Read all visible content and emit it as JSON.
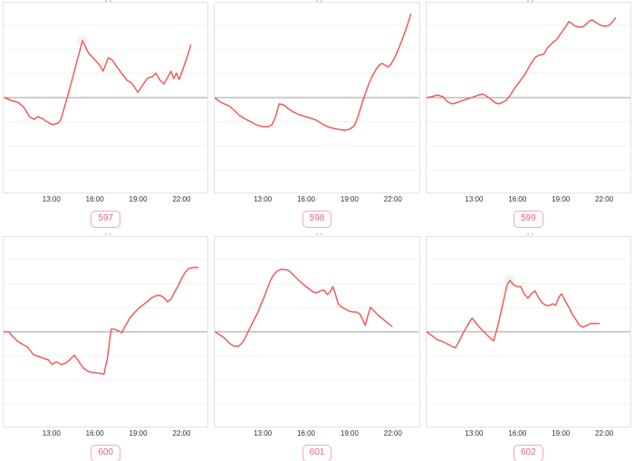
{
  "colors": {
    "line_red": "#f15b5b",
    "baseline_gray": "#9e9e9e",
    "gridline_gray": "#f2f2f2",
    "box_border_gray": "#e2e2e2",
    "badge_border_pink": "#f4a7bd",
    "badge_text_pink": "#e8638c",
    "tick_text": "#303030",
    "peak_halo_gray": "#efefef"
  },
  "chart_data": [
    {
      "type": "line",
      "id": "597",
      "xlabel": "",
      "ylabel": "",
      "x_ticks": [
        {
          "hour": 13,
          "label": "13:00"
        },
        {
          "hour": 16,
          "label": "16:00"
        },
        {
          "hour": 19,
          "label": "19:00"
        },
        {
          "hour": 22,
          "label": "22:00"
        }
      ],
      "xlim": [
        9.38,
        23.62
      ],
      "ylim": [
        -3.93,
        3.93
      ],
      "gridline_units": [
        -3,
        -2,
        -1,
        1,
        2,
        3
      ],
      "baseline_unit": 0,
      "grid": true,
      "peak_marker": true,
      "points": [
        [
          9.44,
          0
        ],
        [
          10.06,
          -0.15
        ],
        [
          10.38,
          -0.19
        ],
        [
          10.81,
          -0.41
        ],
        [
          11.19,
          -0.79
        ],
        [
          11.5,
          -0.9
        ],
        [
          11.75,
          -0.79
        ],
        [
          12.06,
          -0.86
        ],
        [
          12.56,
          -1.05
        ],
        [
          12.81,
          -1.12
        ],
        [
          13.19,
          -1.05
        ],
        [
          13.38,
          -0.9
        ],
        [
          13.94,
          0.26
        ],
        [
          14.88,
          2.36
        ],
        [
          15.31,
          1.84
        ],
        [
          15.75,
          1.57
        ],
        [
          16.13,
          1.31
        ],
        [
          16.31,
          1.09
        ],
        [
          16.69,
          1.65
        ],
        [
          17,
          1.54
        ],
        [
          17.19,
          1.35
        ],
        [
          17.56,
          1.05
        ],
        [
          18,
          0.71
        ],
        [
          18.31,
          0.6
        ],
        [
          18.75,
          0.22
        ],
        [
          19.13,
          0.56
        ],
        [
          19.44,
          0.82
        ],
        [
          19.75,
          0.86
        ],
        [
          20,
          1.01
        ],
        [
          20.31,
          0.71
        ],
        [
          20.56,
          0.56
        ],
        [
          20.88,
          0.9
        ],
        [
          21.06,
          1.09
        ],
        [
          21.25,
          0.79
        ],
        [
          21.44,
          1.01
        ],
        [
          21.63,
          0.75
        ],
        [
          21.88,
          1.16
        ],
        [
          22.19,
          1.69
        ],
        [
          22.44,
          2.17
        ]
      ]
    },
    {
      "type": "line",
      "id": "598",
      "xlabel": "",
      "ylabel": "",
      "x_ticks": [
        {
          "hour": 13,
          "label": "13:00"
        },
        {
          "hour": 16,
          "label": "16:00"
        },
        {
          "hour": 19,
          "label": "19:00"
        },
        {
          "hour": 22,
          "label": "22:00"
        }
      ],
      "xlim": [
        9.38,
        23.62
      ],
      "ylim": [
        -3.93,
        3.93
      ],
      "gridline_units": [
        -3,
        -2,
        -1,
        1,
        2,
        3
      ],
      "baseline_unit": 0,
      "grid": true,
      "peak_marker": false,
      "points": [
        [
          9.38,
          0
        ],
        [
          9.69,
          -0.15
        ],
        [
          10.06,
          -0.26
        ],
        [
          10.38,
          -0.34
        ],
        [
          10.75,
          -0.52
        ],
        [
          11.06,
          -0.71
        ],
        [
          11.44,
          -0.86
        ],
        [
          11.81,
          -0.97
        ],
        [
          12.25,
          -1.12
        ],
        [
          12.69,
          -1.2
        ],
        [
          13.13,
          -1.2
        ],
        [
          13.38,
          -1.12
        ],
        [
          13.63,
          -0.79
        ],
        [
          13.88,
          -0.26
        ],
        [
          14.19,
          -0.3
        ],
        [
          14.5,
          -0.45
        ],
        [
          14.88,
          -0.6
        ],
        [
          15.31,
          -0.71
        ],
        [
          15.75,
          -0.79
        ],
        [
          16.13,
          -0.86
        ],
        [
          16.5,
          -0.94
        ],
        [
          16.88,
          -1.09
        ],
        [
          17.25,
          -1.2
        ],
        [
          17.63,
          -1.27
        ],
        [
          18,
          -1.31
        ],
        [
          18.44,
          -1.35
        ],
        [
          18.81,
          -1.31
        ],
        [
          19.13,
          -1.16
        ],
        [
          19.38,
          -0.79
        ],
        [
          19.63,
          -0.3
        ],
        [
          19.88,
          0.15
        ],
        [
          20.13,
          0.56
        ],
        [
          20.38,
          0.9
        ],
        [
          20.63,
          1.16
        ],
        [
          20.88,
          1.35
        ],
        [
          21.06,
          1.42
        ],
        [
          21.25,
          1.35
        ],
        [
          21.5,
          1.27
        ],
        [
          21.69,
          1.39
        ],
        [
          21.94,
          1.65
        ],
        [
          22.19,
          1.99
        ],
        [
          22.44,
          2.36
        ],
        [
          22.69,
          2.77
        ],
        [
          22.88,
          3.11
        ],
        [
          23.06,
          3.45
        ]
      ]
    },
    {
      "type": "line",
      "id": "599",
      "xlabel": "",
      "ylabel": "",
      "x_ticks": [
        {
          "hour": 13,
          "label": "13:00"
        },
        {
          "hour": 16,
          "label": "16:00"
        },
        {
          "hour": 19,
          "label": "19:00"
        },
        {
          "hour": 22,
          "label": "22:00"
        }
      ],
      "xlim": [
        9.38,
        23.62
      ],
      "ylim": [
        -3.93,
        3.93
      ],
      "gridline_units": [
        -3,
        -2,
        -1,
        1,
        2,
        3
      ],
      "baseline_unit": 0,
      "grid": true,
      "peak_marker": false,
      "points": [
        [
          9.38,
          0
        ],
        [
          9.75,
          0.04
        ],
        [
          10.13,
          0.11
        ],
        [
          10.5,
          0.04
        ],
        [
          10.88,
          -0.19
        ],
        [
          11.19,
          -0.26
        ],
        [
          11.56,
          -0.19
        ],
        [
          11.94,
          -0.11
        ],
        [
          12.31,
          -0.04
        ],
        [
          12.69,
          0.04
        ],
        [
          13,
          0.11
        ],
        [
          13.31,
          0.15
        ],
        [
          13.63,
          0.04
        ],
        [
          13.94,
          -0.11
        ],
        [
          14.19,
          -0.22
        ],
        [
          14.44,
          -0.26
        ],
        [
          14.69,
          -0.19
        ],
        [
          14.94,
          -0.11
        ],
        [
          15.19,
          0.07
        ],
        [
          15.5,
          0.37
        ],
        [
          15.88,
          0.67
        ],
        [
          16.25,
          0.97
        ],
        [
          16.63,
          1.39
        ],
        [
          17,
          1.69
        ],
        [
          17.25,
          1.76
        ],
        [
          17.56,
          1.8
        ],
        [
          17.81,
          2.06
        ],
        [
          18.13,
          2.25
        ],
        [
          18.44,
          2.4
        ],
        [
          18.75,
          2.66
        ],
        [
          19.06,
          2.92
        ],
        [
          19.31,
          3.15
        ],
        [
          19.5,
          3.07
        ],
        [
          19.75,
          2.96
        ],
        [
          20,
          2.92
        ],
        [
          20.25,
          2.92
        ],
        [
          20.5,
          3.03
        ],
        [
          20.75,
          3.18
        ],
        [
          20.94,
          3.22
        ],
        [
          21.19,
          3.11
        ],
        [
          21.44,
          3.03
        ],
        [
          21.69,
          2.96
        ],
        [
          21.94,
          2.96
        ],
        [
          22.13,
          3
        ],
        [
          22.31,
          3.11
        ],
        [
          22.56,
          3.3
        ]
      ]
    },
    {
      "type": "line",
      "id": "600",
      "xlabel": "",
      "ylabel": "",
      "x_ticks": [
        {
          "hour": 13,
          "label": "13:00"
        },
        {
          "hour": 16,
          "label": "16:00"
        },
        {
          "hour": 19,
          "label": "19:00"
        },
        {
          "hour": 22,
          "label": "22:00"
        }
      ],
      "xlim": [
        9.38,
        23.62
      ],
      "ylim": [
        -3.93,
        3.93
      ],
      "gridline_units": [
        -3,
        -2,
        -1,
        1,
        2,
        3
      ],
      "baseline_unit": 0,
      "grid": true,
      "peak_marker": false,
      "points": [
        [
          9.38,
          0
        ],
        [
          9.75,
          0
        ],
        [
          9.94,
          -0.15
        ],
        [
          10.31,
          -0.37
        ],
        [
          10.69,
          -0.52
        ],
        [
          11.06,
          -0.64
        ],
        [
          11.44,
          -0.94
        ],
        [
          11.75,
          -1.01
        ],
        [
          12.13,
          -1.09
        ],
        [
          12.5,
          -1.16
        ],
        [
          12.75,
          -1.35
        ],
        [
          13.06,
          -1.24
        ],
        [
          13.38,
          -1.35
        ],
        [
          13.69,
          -1.31
        ],
        [
          14,
          -1.16
        ],
        [
          14.31,
          -0.97
        ],
        [
          14.63,
          -1.24
        ],
        [
          14.94,
          -1.5
        ],
        [
          15.31,
          -1.65
        ],
        [
          15.69,
          -1.69
        ],
        [
          16.06,
          -1.72
        ],
        [
          16.38,
          -1.76
        ],
        [
          16.63,
          -1.05
        ],
        [
          16.88,
          0.11
        ],
        [
          17.13,
          0.11
        ],
        [
          17.38,
          0.04
        ],
        [
          17.63,
          -0.04
        ],
        [
          17.88,
          0.26
        ],
        [
          18.19,
          0.56
        ],
        [
          18.5,
          0.79
        ],
        [
          18.81,
          0.97
        ],
        [
          19.13,
          1.12
        ],
        [
          19.44,
          1.27
        ],
        [
          19.75,
          1.42
        ],
        [
          20.06,
          1.5
        ],
        [
          20.31,
          1.5
        ],
        [
          20.56,
          1.42
        ],
        [
          20.81,
          1.24
        ],
        [
          21.06,
          1.35
        ],
        [
          21.31,
          1.65
        ],
        [
          21.56,
          1.91
        ],
        [
          21.81,
          2.21
        ],
        [
          22.06,
          2.47
        ],
        [
          22.31,
          2.62
        ],
        [
          22.63,
          2.66
        ],
        [
          22.94,
          2.66
        ]
      ]
    },
    {
      "type": "line",
      "id": "601",
      "xlabel": "",
      "ylabel": "",
      "x_ticks": [
        {
          "hour": 13,
          "label": "13:00"
        },
        {
          "hour": 16,
          "label": "16:00"
        },
        {
          "hour": 19,
          "label": "19:00"
        },
        {
          "hour": 22,
          "label": "22:00"
        }
      ],
      "xlim": [
        9.38,
        23.62
      ],
      "ylim": [
        -3.93,
        3.93
      ],
      "gridline_units": [
        -3,
        -2,
        -1,
        1,
        2,
        3
      ],
      "baseline_unit": 0,
      "grid": true,
      "peak_marker": false,
      "points": [
        [
          9.38,
          0
        ],
        [
          9.69,
          -0.11
        ],
        [
          10.06,
          -0.26
        ],
        [
          10.44,
          -0.49
        ],
        [
          10.75,
          -0.6
        ],
        [
          11.06,
          -0.6
        ],
        [
          11.31,
          -0.45
        ],
        [
          11.56,
          -0.19
        ],
        [
          11.81,
          0.11
        ],
        [
          12.06,
          0.41
        ],
        [
          12.38,
          0.79
        ],
        [
          12.69,
          1.24
        ],
        [
          13,
          1.69
        ],
        [
          13.25,
          2.1
        ],
        [
          13.5,
          2.36
        ],
        [
          13.75,
          2.51
        ],
        [
          14,
          2.58
        ],
        [
          14.25,
          2.58
        ],
        [
          14.5,
          2.55
        ],
        [
          14.75,
          2.43
        ],
        [
          15,
          2.28
        ],
        [
          15.25,
          2.13
        ],
        [
          15.5,
          1.99
        ],
        [
          15.75,
          1.87
        ],
        [
          16,
          1.76
        ],
        [
          16.25,
          1.65
        ],
        [
          16.5,
          1.61
        ],
        [
          16.75,
          1.69
        ],
        [
          17,
          1.72
        ],
        [
          17.25,
          1.54
        ],
        [
          17.44,
          1.65
        ],
        [
          17.63,
          1.87
        ],
        [
          17.81,
          1.54
        ],
        [
          18,
          1.16
        ],
        [
          18.25,
          1.01
        ],
        [
          18.5,
          0.94
        ],
        [
          18.75,
          0.86
        ],
        [
          19,
          0.82
        ],
        [
          19.25,
          0.82
        ],
        [
          19.5,
          0.75
        ],
        [
          19.69,
          0.52
        ],
        [
          19.88,
          0.26
        ],
        [
          20.06,
          0.64
        ],
        [
          20.25,
          1.01
        ],
        [
          20.5,
          0.86
        ],
        [
          20.81,
          0.67
        ],
        [
          21.13,
          0.52
        ],
        [
          21.44,
          0.37
        ],
        [
          21.75,
          0.22
        ]
      ]
    },
    {
      "type": "line",
      "id": "602",
      "xlabel": "",
      "ylabel": "",
      "x_ticks": [
        {
          "hour": 13,
          "label": "13:00"
        },
        {
          "hour": 16,
          "label": "16:00"
        },
        {
          "hour": 19,
          "label": "19:00"
        },
        {
          "hour": 22,
          "label": "22:00"
        }
      ],
      "xlim": [
        9.38,
        23.62
      ],
      "ylim": [
        -3.93,
        3.93
      ],
      "gridline_units": [
        -3,
        -2,
        -1,
        1,
        2,
        3
      ],
      "baseline_unit": 0,
      "grid": true,
      "peak_marker": true,
      "points": [
        [
          9.38,
          0
        ],
        [
          9.63,
          -0.11
        ],
        [
          9.88,
          -0.22
        ],
        [
          10.13,
          -0.34
        ],
        [
          10.38,
          -0.37
        ],
        [
          10.63,
          -0.45
        ],
        [
          10.88,
          -0.52
        ],
        [
          11.13,
          -0.6
        ],
        [
          11.38,
          -0.67
        ],
        [
          11.63,
          -0.41
        ],
        [
          11.88,
          -0.11
        ],
        [
          12.13,
          0.15
        ],
        [
          12.38,
          0.41
        ],
        [
          12.56,
          0.56
        ],
        [
          12.81,
          0.37
        ],
        [
          13.06,
          0.19
        ],
        [
          13.31,
          0.04
        ],
        [
          13.56,
          -0.11
        ],
        [
          13.81,
          -0.26
        ],
        [
          14.06,
          -0.37
        ],
        [
          14.31,
          0.15
        ],
        [
          14.56,
          0.79
        ],
        [
          14.81,
          1.46
        ],
        [
          15,
          1.95
        ],
        [
          15.19,
          2.13
        ],
        [
          15.44,
          1.95
        ],
        [
          15.69,
          1.87
        ],
        [
          15.94,
          1.87
        ],
        [
          16.19,
          1.57
        ],
        [
          16.44,
          1.39
        ],
        [
          16.69,
          1.57
        ],
        [
          16.94,
          1.69
        ],
        [
          17.19,
          1.42
        ],
        [
          17.44,
          1.2
        ],
        [
          17.69,
          1.09
        ],
        [
          17.94,
          1.09
        ],
        [
          18.19,
          1.16
        ],
        [
          18.38,
          1.09
        ],
        [
          18.63,
          1.46
        ],
        [
          18.81,
          1.57
        ],
        [
          19.06,
          1.27
        ],
        [
          19.31,
          1.01
        ],
        [
          19.56,
          0.71
        ],
        [
          19.81,
          0.49
        ],
        [
          20.06,
          0.26
        ],
        [
          20.31,
          0.19
        ],
        [
          20.56,
          0.26
        ],
        [
          20.81,
          0.34
        ],
        [
          21.13,
          0.34
        ],
        [
          21.44,
          0.34
        ]
      ]
    }
  ]
}
